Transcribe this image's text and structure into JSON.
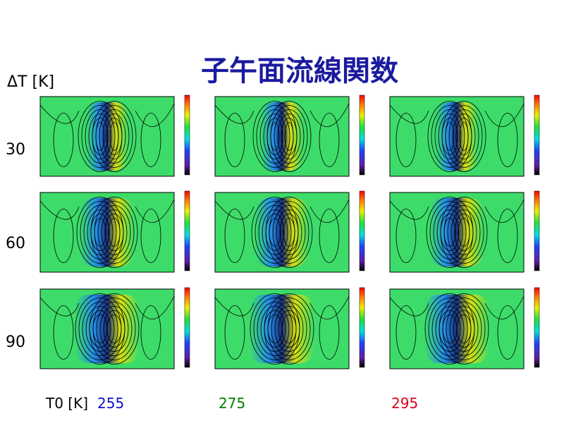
{
  "title": "子午面流線関数",
  "dt_label": "ΔT [K]",
  "rows": [
    "30",
    "60",
    "90"
  ],
  "t0_label": "T0 [K]",
  "columns": [
    {
      "label": "255",
      "color": "#1010d0"
    },
    {
      "label": "275",
      "color": "#008000"
    },
    {
      "label": "295",
      "color": "#e00020"
    }
  ]
}
